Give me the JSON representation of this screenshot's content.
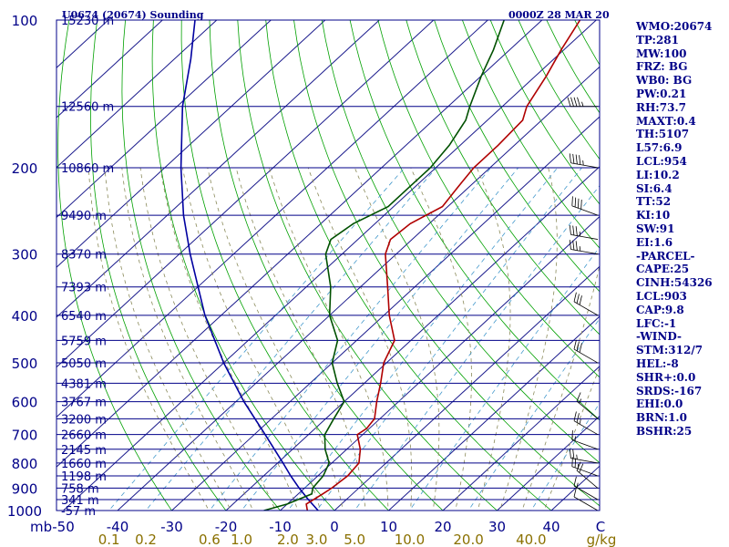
{
  "chart_data": {
    "type": "skew-t",
    "title_left": "U0674 (20674) Sounding",
    "title_right": "0000Z 28 MAR 20",
    "pressure_unit": "mb",
    "mixing_ratio_unit": "g/kg",
    "pressure_ticks": [
      "100",
      "200",
      "300",
      "400",
      "500",
      "600",
      "700",
      "800",
      "900",
      "1000"
    ],
    "pressure_values": [
      100,
      200,
      300,
      400,
      500,
      600,
      700,
      800,
      900,
      1000
    ],
    "temperature_ticks": [
      "-50",
      "-40",
      "-30",
      "-20",
      "-10",
      "0",
      "10",
      "20",
      "30",
      "40"
    ],
    "temperature_values": [
      -50,
      -40,
      -30,
      -20,
      -10,
      0,
      10,
      20,
      30,
      40
    ],
    "temperature_end_label": "C",
    "mixing_ratio_ticks": [
      "0.1",
      "0.2",
      "0.6",
      "1.0",
      "2.0",
      "3.0",
      "5.0",
      "10.0",
      "20.0",
      "40.0"
    ],
    "mixing_ratio_values": [
      0.1,
      0.2,
      0.6,
      1.0,
      2.0,
      3.0,
      5.0,
      10.0,
      20.0,
      40.0
    ],
    "height_levels": [
      {
        "p": 100,
        "label": "15230 m"
      },
      {
        "p": 150,
        "label": "12560 m"
      },
      {
        "p": 200,
        "label": "10860 m"
      },
      {
        "p": 250,
        "label": "9490 m"
      },
      {
        "p": 300,
        "label": "8370 m"
      },
      {
        "p": 350,
        "label": "7393 m"
      },
      {
        "p": 400,
        "label": "6540 m"
      },
      {
        "p": 450,
        "label": "5759 m"
      },
      {
        "p": 500,
        "label": "5050 m"
      },
      {
        "p": 550,
        "label": "4381 m"
      },
      {
        "p": 600,
        "label": "3767 m"
      },
      {
        "p": 650,
        "label": "3200 m"
      },
      {
        "p": 700,
        "label": "2660 m"
      },
      {
        "p": 750,
        "label": "2145 m"
      },
      {
        "p": 800,
        "label": "1660 m"
      },
      {
        "p": 850,
        "label": "1198 m"
      },
      {
        "p": 900,
        "label": "758 m"
      },
      {
        "p": 950,
        "label": "341 m"
      },
      {
        "p": 1000,
        "label": "-57 m"
      }
    ],
    "temperature_profile": [
      {
        "p": 1000,
        "t": -5.0
      },
      {
        "p": 970,
        "t": -6.5
      },
      {
        "p": 925,
        "t": -5.5
      },
      {
        "p": 900,
        "t": -5.0
      },
      {
        "p": 850,
        "t": -4.5
      },
      {
        "p": 800,
        "t": -5.0
      },
      {
        "p": 750,
        "t": -7.5
      },
      {
        "p": 700,
        "t": -11.0
      },
      {
        "p": 680,
        "t": -10.5
      },
      {
        "p": 650,
        "t": -11.0
      },
      {
        "p": 600,
        "t": -14.0
      },
      {
        "p": 550,
        "t": -17.0
      },
      {
        "p": 500,
        "t": -20.5
      },
      {
        "p": 450,
        "t": -23.0
      },
      {
        "p": 400,
        "t": -29.0
      },
      {
        "p": 350,
        "t": -35.0
      },
      {
        "p": 300,
        "t": -42.0
      },
      {
        "p": 280,
        "t": -44.0
      },
      {
        "p": 260,
        "t": -43.5
      },
      {
        "p": 240,
        "t": -41.0
      },
      {
        "p": 220,
        "t": -42.0
      },
      {
        "p": 200,
        "t": -43.0
      },
      {
        "p": 180,
        "t": -43.0
      },
      {
        "p": 160,
        "t": -43.5
      },
      {
        "p": 150,
        "t": -45.5
      },
      {
        "p": 130,
        "t": -48.0
      },
      {
        "p": 115,
        "t": -50.5
      },
      {
        "p": 100,
        "t": -53.0
      }
    ],
    "dewpoint_profile": [
      {
        "p": 1000,
        "t": -13.0
      },
      {
        "p": 970,
        "t": -10.0
      },
      {
        "p": 925,
        "t": -7.5
      },
      {
        "p": 900,
        "t": -8.5
      },
      {
        "p": 850,
        "t": -9.0
      },
      {
        "p": 800,
        "t": -10.5
      },
      {
        "p": 750,
        "t": -14.0
      },
      {
        "p": 700,
        "t": -17.0
      },
      {
        "p": 650,
        "t": -18.5
      },
      {
        "p": 600,
        "t": -20.0
      },
      {
        "p": 550,
        "t": -25.0
      },
      {
        "p": 500,
        "t": -30.0
      },
      {
        "p": 450,
        "t": -33.5
      },
      {
        "p": 400,
        "t": -40.0
      },
      {
        "p": 350,
        "t": -45.5
      },
      {
        "p": 300,
        "t": -53.0
      },
      {
        "p": 280,
        "t": -55.0
      },
      {
        "p": 260,
        "t": -54.0
      },
      {
        "p": 240,
        "t": -51.0
      },
      {
        "p": 220,
        "t": -51.0
      },
      {
        "p": 200,
        "t": -51.0
      },
      {
        "p": 180,
        "t": -52.0
      },
      {
        "p": 160,
        "t": -54.0
      },
      {
        "p": 150,
        "t": -56.0
      },
      {
        "p": 130,
        "t": -60.0
      },
      {
        "p": 115,
        "t": -63.0
      },
      {
        "p": 100,
        "t": -67.0
      }
    ],
    "parcel_profile": [
      {
        "p": 1000,
        "t": -3.0
      },
      {
        "p": 950,
        "t": -7.0
      },
      {
        "p": 900,
        "t": -11.0
      },
      {
        "p": 850,
        "t": -15.0
      },
      {
        "p": 800,
        "t": -19.0
      },
      {
        "p": 700,
        "t": -28.0
      },
      {
        "p": 600,
        "t": -38.5
      },
      {
        "p": 500,
        "t": -50.0
      },
      {
        "p": 400,
        "t": -63.0
      },
      {
        "p": 300,
        "t": -78.0
      },
      {
        "p": 250,
        "t": -87.0
      },
      {
        "p": 200,
        "t": -97.0
      },
      {
        "p": 150,
        "t": -109.0
      },
      {
        "p": 120,
        "t": -117.0
      },
      {
        "p": 100,
        "t": -124.0
      }
    ],
    "wind_barbs": [
      {
        "p": 1000,
        "dir": 300,
        "spd": 10
      },
      {
        "p": 950,
        "dir": 300,
        "spd": 15
      },
      {
        "p": 900,
        "dir": 310,
        "spd": 20
      },
      {
        "p": 850,
        "dir": 290,
        "spd": 25
      },
      {
        "p": 800,
        "dir": 280,
        "spd": 25
      },
      {
        "p": 750,
        "dir": 290,
        "spd": 15
      },
      {
        "p": 700,
        "dir": 300,
        "spd": 25
      },
      {
        "p": 650,
        "dir": 310,
        "spd": 15
      },
      {
        "p": 500,
        "dir": 300,
        "spd": 30
      },
      {
        "p": 400,
        "dir": 300,
        "spd": 30
      },
      {
        "p": 300,
        "dir": 280,
        "spd": 35
      },
      {
        "p": 280,
        "dir": 280,
        "spd": 35
      },
      {
        "p": 250,
        "dir": 290,
        "spd": 40
      },
      {
        "p": 200,
        "dir": 280,
        "spd": 45
      },
      {
        "p": 150,
        "dir": 270,
        "spd": 45
      }
    ]
  },
  "indices": [
    "WMO:20674",
    "TP:281",
    "MW:100",
    "FRZ: BG",
    "WB0: BG",
    "PW:0.21",
    "RH:73.7",
    "MAXT:0.4",
    "TH:5107",
    "L57:6.9",
    "LCL:954",
    "LI:10.2",
    "SI:6.4",
    "TT:52",
    "KI:10",
    "SW:91",
    "EI:1.6",
    "-PARCEL-",
    "CAPE:25",
    "CINH:54326",
    "LCL:903",
    "CAP:9.8",
    "LFC:-1",
    "-WIND-",
    "STM:312/7",
    "HEL:-8",
    "SHR+:0.0",
    "SRDS:-167",
    "EHI:0.0",
    "BRN:1.0",
    "BSHR:25"
  ],
  "colors": {
    "isobar": "#000088",
    "isotherm": "#1a1a8c",
    "dry_adiabat": "#00a000",
    "moist_adiabat": "#8a8a5a",
    "mixing_ratio": "#4499cc",
    "temperature": "#b00000",
    "dewpoint": "#005000",
    "parcel": "#0000a0",
    "label": "#000088",
    "bottom_temp": "#000088",
    "bottom_mixing": "#8a7000"
  }
}
